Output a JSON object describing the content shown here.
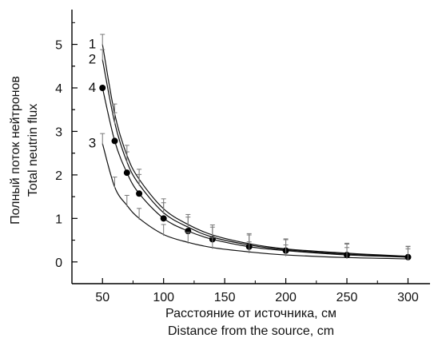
{
  "chart_data": {
    "type": "line",
    "xlabel_lines": [
      "Расстояние от источника, см",
      "Distance from the source, cm"
    ],
    "ylabel_lines": [
      "Полный поток нейтронов",
      "Total neutrin flux"
    ],
    "xlim": [
      25,
      318
    ],
    "ylim": [
      -0.5,
      5.8
    ],
    "xticks": [
      50,
      100,
      150,
      200,
      250,
      300
    ],
    "yticks": [
      0,
      1,
      2,
      3,
      4,
      5
    ],
    "grid": false,
    "legend": "none",
    "series": [
      {
        "name": "1",
        "marker": "errorbar",
        "x": [
          50,
          60,
          70,
          80,
          100,
          120,
          140,
          170,
          200,
          250,
          300
        ],
        "y": [
          5.0,
          3.4,
          2.45,
          1.9,
          1.22,
          0.86,
          0.62,
          0.42,
          0.3,
          0.2,
          0.13
        ]
      },
      {
        "name": "2",
        "marker": "errorbar",
        "x": [
          50,
          60,
          70,
          80,
          100,
          120,
          140,
          170,
          200,
          250,
          300
        ],
        "y": [
          4.65,
          3.2,
          2.3,
          1.78,
          1.13,
          0.8,
          0.57,
          0.39,
          0.28,
          0.18,
          0.12
        ]
      },
      {
        "name": "4",
        "marker": "circle",
        "x": [
          50,
          60,
          70,
          80,
          100,
          120,
          140,
          170,
          200,
          250,
          300
        ],
        "y": [
          4.0,
          2.78,
          2.05,
          1.57,
          1.0,
          0.71,
          0.52,
          0.35,
          0.26,
          0.16,
          0.11
        ]
      },
      {
        "name": "3",
        "marker": "errorbar",
        "x": [
          50,
          60,
          70,
          80,
          100,
          120,
          140,
          170,
          200,
          250,
          300
        ],
        "y": [
          2.72,
          1.72,
          1.3,
          1.0,
          0.63,
          0.45,
          0.33,
          0.23,
          0.16,
          0.1,
          0.07
        ]
      }
    ]
  }
}
